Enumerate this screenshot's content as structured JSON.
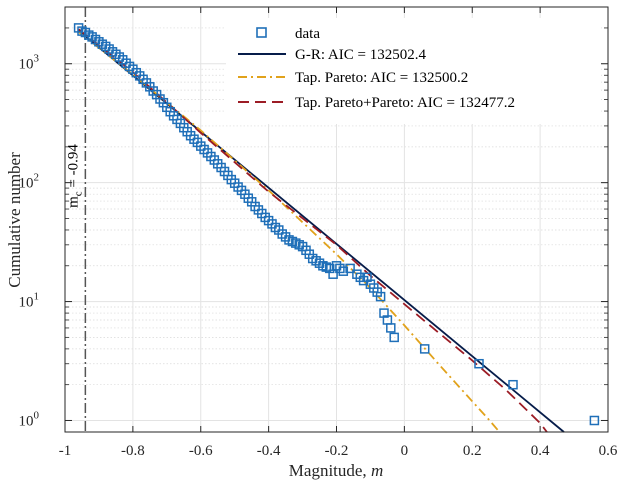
{
  "chart_data": {
    "type": "scatter",
    "xlabel": "Magnitude, ",
    "xlabel_italic": "m",
    "ylabel": "Cumulative number",
    "xlim": [
      -1.0,
      0.6
    ],
    "ylim": [
      0.8,
      3000
    ],
    "yscale": "log",
    "grid": true,
    "legend_position": "top-right",
    "x_ticks": [
      -1,
      -0.8,
      -0.6,
      -0.4,
      -0.2,
      0,
      0.2,
      0.4,
      0.6
    ],
    "x_tick_labels": [
      "-1",
      "-0.8",
      "-0.6",
      "-0.4",
      "-0.2",
      "0",
      "0.2",
      "0.4",
      "0.6"
    ],
    "y_ticks": [
      {
        "value": 1,
        "base": "10",
        "exp": "0"
      },
      {
        "value": 10,
        "base": "10",
        "exp": "1"
      },
      {
        "value": 100,
        "base": "10",
        "exp": "2"
      },
      {
        "value": 1000,
        "base": "10",
        "exp": "3"
      }
    ],
    "mc": {
      "value": -0.94,
      "label_base": "m",
      "label_sub": "c",
      "label_rest": " = -0.94",
      "color": "#555555"
    },
    "series": [
      {
        "name": "data",
        "kind": "markers",
        "color": "#1f6fb8",
        "x": [
          -0.96,
          -0.95,
          -0.94,
          -0.93,
          -0.92,
          -0.91,
          -0.9,
          -0.89,
          -0.88,
          -0.87,
          -0.86,
          -0.85,
          -0.84,
          -0.83,
          -0.82,
          -0.81,
          -0.8,
          -0.79,
          -0.78,
          -0.77,
          -0.76,
          -0.75,
          -0.74,
          -0.73,
          -0.72,
          -0.71,
          -0.7,
          -0.69,
          -0.68,
          -0.67,
          -0.66,
          -0.65,
          -0.64,
          -0.63,
          -0.62,
          -0.61,
          -0.6,
          -0.59,
          -0.58,
          -0.57,
          -0.56,
          -0.55,
          -0.54,
          -0.53,
          -0.52,
          -0.51,
          -0.5,
          -0.49,
          -0.48,
          -0.47,
          -0.46,
          -0.45,
          -0.44,
          -0.43,
          -0.42,
          -0.41,
          -0.4,
          -0.39,
          -0.38,
          -0.37,
          -0.36,
          -0.35,
          -0.34,
          -0.33,
          -0.32,
          -0.31,
          -0.3,
          -0.29,
          -0.28,
          -0.27,
          -0.26,
          -0.25,
          -0.24,
          -0.23,
          -0.22,
          -0.21,
          -0.2,
          -0.19,
          -0.18,
          -0.16,
          -0.14,
          -0.13,
          -0.12,
          -0.11,
          -0.1,
          -0.09,
          -0.08,
          -0.07,
          -0.06,
          -0.05,
          -0.04,
          -0.03,
          0.06,
          0.22,
          0.32,
          0.56
        ],
        "y": [
          2000,
          1880,
          1830,
          1740,
          1680,
          1600,
          1530,
          1460,
          1400,
          1330,
          1260,
          1200,
          1140,
          1080,
          1010,
          950,
          900,
          840,
          790,
          740,
          690,
          640,
          590,
          550,
          505,
          470,
          430,
          395,
          365,
          340,
          315,
          290,
          268,
          248,
          232,
          218,
          203,
          190,
          178,
          166,
          155,
          144,
          134,
          124,
          115,
          106,
          99,
          92,
          86,
          80,
          74,
          69,
          63,
          59,
          55,
          51,
          48,
          45,
          42,
          40,
          37,
          35,
          33,
          32,
          31,
          30,
          29,
          27,
          25,
          23,
          22,
          21,
          20,
          19.5,
          19,
          17,
          20,
          19,
          18,
          19,
          17,
          16,
          15,
          16,
          14,
          13,
          12,
          11,
          8,
          7,
          6,
          5,
          4,
          3,
          2,
          1
        ]
      },
      {
        "name": "G-R: AIC = 132502.4",
        "kind": "line",
        "color": "#061c4a",
        "dash": "",
        "x": [
          -0.96,
          0.47
        ],
        "y": [
          1900,
          0.8
        ]
      },
      {
        "name": "Tap. Pareto: AIC = 132500.2",
        "kind": "line",
        "color": "#e1a21b",
        "dash": "9,4,2,4",
        "x": [
          -0.96,
          -0.8,
          -0.6,
          -0.4,
          -0.2,
          -0.1,
          0,
          0.1,
          0.2,
          0.25,
          0.28
        ],
        "y": [
          1850,
          810,
          275,
          86,
          25,
          13,
          6.3,
          3.0,
          1.45,
          1.01,
          0.8
        ]
      },
      {
        "name": "Tap. Pareto+Pareto: AIC = 132477.2",
        "kind": "line",
        "color": "#9c1c25",
        "dash": "11,6",
        "x": [
          -0.96,
          -0.8,
          -0.6,
          -0.4,
          -0.2,
          -0.1,
          0,
          0.1,
          0.2,
          0.3,
          0.4,
          0.42
        ],
        "y": [
          1950,
          850,
          262,
          84,
          30,
          16.5,
          9.5,
          5.5,
          3.2,
          1.8,
          0.95,
          0.8
        ]
      }
    ]
  }
}
